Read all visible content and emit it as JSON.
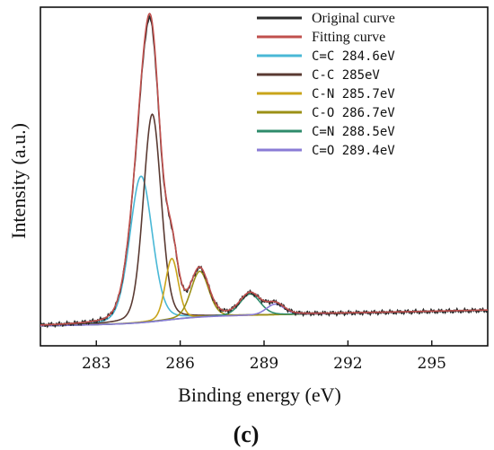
{
  "chart_data": {
    "type": "line",
    "title": "",
    "xlabel": "Binding energy (eV)",
    "ylabel": "Intensity (a.u.)",
    "panel_label": "(c)",
    "xlim": [
      281,
      297
    ],
    "ylim": [
      -0.06,
      1.05
    ],
    "xticks": [
      283,
      286,
      289,
      292,
      295
    ],
    "grid": false,
    "legend_position": "top-right",
    "series": [
      {
        "name": "Original curve",
        "color": "#2b2b2b",
        "kind": "envelope"
      },
      {
        "name": "Fitting curve",
        "color": "#c0504d",
        "kind": "envelope"
      },
      {
        "name": "C=C 284.6eV",
        "color": "#49b8d6",
        "kind": "peak",
        "center": 284.6,
        "height": 0.48,
        "fwhm": 0.95
      },
      {
        "name": "C-C 285eV",
        "color": "#5a3a32",
        "kind": "peak",
        "center": 285.0,
        "height": 0.68,
        "fwhm": 0.75
      },
      {
        "name": "C-N 285.7eV",
        "color": "#c9a41a",
        "kind": "peak",
        "center": 285.7,
        "height": 0.2,
        "fwhm": 0.55
      },
      {
        "name": "C-O 286.7eV",
        "color": "#9b9016",
        "kind": "peak",
        "center": 286.7,
        "height": 0.15,
        "fwhm": 0.75
      },
      {
        "name": "C=N 288.5eV",
        "color": "#2e8b6b",
        "kind": "peak",
        "center": 288.5,
        "height": 0.07,
        "fwhm": 0.85
      },
      {
        "name": "C=O 289.4eV",
        "color": "#8a7bd6",
        "kind": "peak",
        "center": 289.4,
        "height": 0.035,
        "fwhm": 0.75
      }
    ]
  }
}
